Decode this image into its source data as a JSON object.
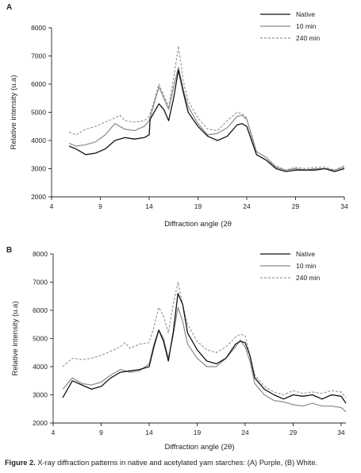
{
  "figure": {
    "caption_label": "Figure 2.",
    "caption_text": "X-ray diffraction patterns in native and acetylated yam starches: (A) Purple, (B) White."
  },
  "chart_data": [
    {
      "type": "line",
      "panel_label": "A",
      "xlabel": "Diffraction angle (2θ",
      "ylabel": "Relative intensity (u.a)",
      "xlim": [
        4,
        34
      ],
      "ylim": [
        2000,
        8000
      ],
      "xticks": [
        "4",
        "9",
        "14",
        "19",
        "24",
        "29",
        "34"
      ],
      "yticks": [
        "2000",
        "3000",
        "4000",
        "5000",
        "6000",
        "7000",
        "8000"
      ],
      "legend_position": "top-right",
      "series": [
        {
          "name": "Native",
          "color": "#111111",
          "dash": "solid",
          "x": [
            5.8,
            6.5,
            7.5,
            8.5,
            9.5,
            10.5,
            11.5,
            12.5,
            13.5,
            14.0,
            14.1,
            14.5,
            15.0,
            15.5,
            16.0,
            16.5,
            17.0,
            17.5,
            18.0,
            19.0,
            20.0,
            21.0,
            22.0,
            23.0,
            23.5,
            24.0,
            24.5,
            25.0,
            26.0,
            27.0,
            28.0,
            29.0,
            30.0,
            31.0,
            32.0,
            33.0,
            34.0
          ],
          "y": [
            3800,
            3700,
            3500,
            3550,
            3700,
            4000,
            4100,
            4050,
            4100,
            4200,
            4750,
            5000,
            5300,
            5100,
            4700,
            5500,
            6500,
            5700,
            5000,
            4500,
            4150,
            4000,
            4150,
            4550,
            4600,
            4500,
            4000,
            3500,
            3300,
            3000,
            2900,
            2950,
            2950,
            2950,
            3000,
            2900,
            3000
          ]
        },
        {
          "name": "10 min",
          "color": "#8a8a8a",
          "dash": "solid",
          "x": [
            5.8,
            6.5,
            7.5,
            8.5,
            9.5,
            10.5,
            11.5,
            12.5,
            13.5,
            14.0,
            14.5,
            15.0,
            15.5,
            16.0,
            16.5,
            17.0,
            17.5,
            18.0,
            19.0,
            20.0,
            21.0,
            22.0,
            23.0,
            23.5,
            24.0,
            24.5,
            25.0,
            26.0,
            27.0,
            28.0,
            29.0,
            30.0,
            31.0,
            32.0,
            33.0,
            34.0
          ],
          "y": [
            3900,
            3800,
            3850,
            3950,
            4200,
            4600,
            4400,
            4350,
            4500,
            4700,
            5300,
            5900,
            5500,
            5100,
            5900,
            6600,
            5800,
            5200,
            4600,
            4200,
            4250,
            4450,
            4850,
            4900,
            4750,
            4200,
            3600,
            3400,
            3050,
            2950,
            3000,
            2950,
            3000,
            3000,
            2950,
            3050
          ]
        },
        {
          "name": "240 min",
          "color": "#9a9a9a",
          "dash": "dashed",
          "x": [
            5.8,
            6.5,
            7.5,
            8.5,
            9.5,
            10.5,
            11.0,
            11.5,
            12.5,
            13.5,
            14.0,
            14.5,
            15.0,
            15.5,
            16.0,
            16.5,
            17.0,
            17.5,
            18.0,
            19.0,
            20.0,
            21.0,
            22.0,
            23.0,
            23.5,
            24.0,
            24.5,
            25.0,
            26.0,
            27.0,
            28.0,
            29.0,
            30.0,
            31.0,
            32.0,
            33.0,
            34.0
          ],
          "y": [
            4300,
            4200,
            4400,
            4500,
            4650,
            4800,
            4900,
            4700,
            4650,
            4700,
            4850,
            5400,
            6000,
            5600,
            5200,
            6200,
            7350,
            6100,
            5400,
            4800,
            4400,
            4350,
            4700,
            5000,
            4950,
            4800,
            4100,
            3500,
            3300,
            3100,
            2950,
            3050,
            3000,
            3050,
            3050,
            2950,
            3100
          ]
        }
      ]
    },
    {
      "type": "line",
      "panel_label": "B",
      "xlabel": "Diffraction angle (2θ)",
      "ylabel": "Relative intensity (u.a)",
      "xlim": [
        4,
        34.5
      ],
      "ylim": [
        2000,
        8000
      ],
      "xticks": [
        "4",
        "9",
        "14",
        "19",
        "24",
        "29",
        "34"
      ],
      "yticks": [
        "2000",
        "3000",
        "4000",
        "5000",
        "6000",
        "7000",
        "8000"
      ],
      "legend_position": "top-right",
      "series": [
        {
          "name": "Native",
          "color": "#111111",
          "dash": "solid",
          "x": [
            5.0,
            6.0,
            7.0,
            8.0,
            9.0,
            10.0,
            11.0,
            12.0,
            13.0,
            14.0,
            14.5,
            15.0,
            15.5,
            16.0,
            16.5,
            17.0,
            17.5,
            18.0,
            19.0,
            20.0,
            21.0,
            22.0,
            23.0,
            23.5,
            24.0,
            24.5,
            25.0,
            26.0,
            27.0,
            28.0,
            29.0,
            30.0,
            31.0,
            32.0,
            33.0,
            34.0,
            34.5
          ],
          "y": [
            2900,
            3500,
            3350,
            3200,
            3300,
            3600,
            3800,
            3850,
            3900,
            4000,
            4700,
            5300,
            4900,
            4200,
            5200,
            6600,
            6200,
            5200,
            4600,
            4200,
            4100,
            4300,
            4800,
            4900,
            4850,
            4400,
            3600,
            3200,
            3000,
            2850,
            3000,
            2950,
            3000,
            2850,
            3000,
            2950,
            2700
          ]
        },
        {
          "name": "10 min",
          "color": "#8a8a8a",
          "dash": "solid",
          "x": [
            5.0,
            6.0,
            7.0,
            8.0,
            9.0,
            10.0,
            11.0,
            12.0,
            13.0,
            14.0,
            14.5,
            15.0,
            15.5,
            16.0,
            16.5,
            17.0,
            17.5,
            18.0,
            19.0,
            20.0,
            21.0,
            22.0,
            23.0,
            23.5,
            24.0,
            24.5,
            25.0,
            26.0,
            27.0,
            28.0,
            29.0,
            30.0,
            31.0,
            32.0,
            33.0,
            34.0,
            34.5
          ],
          "y": [
            3200,
            3600,
            3400,
            3350,
            3450,
            3700,
            3900,
            3800,
            3850,
            4100,
            4800,
            5300,
            5000,
            4300,
            5100,
            6100,
            5600,
            4800,
            4300,
            4000,
            4000,
            4300,
            4700,
            4950,
            4700,
            4200,
            3400,
            3000,
            2800,
            2750,
            2650,
            2600,
            2700,
            2600,
            2600,
            2550,
            2400
          ]
        },
        {
          "name": "240 min",
          "color": "#9a9a9a",
          "dash": "dashed",
          "x": [
            5.0,
            6.0,
            7.0,
            8.0,
            9.0,
            10.0,
            11.0,
            11.5,
            12.0,
            13.0,
            14.0,
            14.5,
            15.0,
            15.5,
            16.0,
            16.5,
            17.0,
            17.5,
            18.0,
            19.0,
            20.0,
            21.0,
            22.0,
            23.0,
            23.5,
            24.0,
            24.5,
            25.0,
            26.0,
            27.0,
            28.0,
            29.0,
            30.0,
            31.0,
            32.0,
            33.0,
            34.0,
            34.5
          ],
          "y": [
            4000,
            4300,
            4250,
            4300,
            4400,
            4550,
            4700,
            4850,
            4650,
            4800,
            4850,
            5400,
            6100,
            5800,
            5200,
            6200,
            7000,
            6200,
            5500,
            4900,
            4600,
            4500,
            4700,
            5050,
            5150,
            5100,
            4400,
            3700,
            3300,
            3100,
            3000,
            3150,
            3050,
            3100,
            3050,
            3150,
            3100,
            2900
          ]
        }
      ]
    }
  ]
}
